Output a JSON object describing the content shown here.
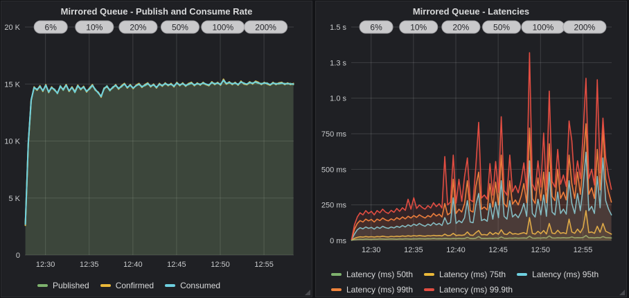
{
  "theme": {
    "page_bg": "#131417",
    "panel_bg": "#1f2024",
    "panel_border": "#2c2d31",
    "title_text": "#d8d9da",
    "axis_text": "#c9cbcd",
    "grid_color": "rgba(255,255,255,0.14)",
    "pill_bg": "#c9c9cb",
    "pill_border": "#a3a3a7",
    "pill_text": "#26272b",
    "palette": {
      "green": "#7EB26D",
      "yellow": "#EAB839",
      "cyan": "#6ED0E0",
      "orange": "#EF843C",
      "red": "#E24D42"
    }
  },
  "chart_data": [
    {
      "type": "line",
      "title": "Mirrored Queue - Publish and Consume Rate",
      "xlabel": "",
      "ylabel": "",
      "grid": true,
      "legend_position": "bottom",
      "x_range_minutes": [
        27.65,
        58.4
      ],
      "sample_start_min": 27.7,
      "sample_step_min": 0.33333,
      "ylim": [
        0,
        20000
      ],
      "y_ticks": [
        {
          "v": 0,
          "label": "0"
        },
        {
          "v": 5000,
          "label": "5 K"
        },
        {
          "v": 10000,
          "label": "10 K"
        },
        {
          "v": 15000,
          "label": "15 K"
        },
        {
          "v": 20000,
          "label": "20 K"
        }
      ],
      "x_ticks": [
        {
          "t": 30,
          "label": "12:30"
        },
        {
          "t": 35,
          "label": "12:35"
        },
        {
          "t": 40,
          "label": "12:40"
        },
        {
          "t": 45,
          "label": "12:45"
        },
        {
          "t": 50,
          "label": "12:50"
        },
        {
          "t": 55,
          "label": "12:55"
        }
      ],
      "annotations": [
        {
          "t": 30.6,
          "label": "6%"
        },
        {
          "t": 35.6,
          "label": "10%"
        },
        {
          "t": 40.6,
          "label": "20%"
        },
        {
          "t": 45.4,
          "label": "50%"
        },
        {
          "t": 50.3,
          "label": "100%"
        },
        {
          "t": 55.2,
          "label": "200%"
        }
      ],
      "series": [
        {
          "name": "Published",
          "color": "#7EB26D",
          "fill_opacity": 0.09,
          "values": [
            2750,
            9750,
            13650,
            14650,
            14550,
            14750,
            14450,
            14850,
            14350,
            14650,
            14550,
            14150,
            14850,
            14450,
            14950,
            14350,
            14750,
            14250,
            14800,
            14600,
            14700,
            14400,
            14550,
            14850,
            14550,
            14200,
            13950,
            14550,
            14850,
            14400,
            14750,
            14850,
            14650,
            14750,
            15050,
            14650,
            14950,
            14600,
            14900,
            14950,
            14800,
            14850,
            15000,
            14850,
            14900,
            14750,
            14950,
            14900,
            15000,
            14950,
            14950,
            14850,
            15050,
            14950,
            15000,
            14900,
            14950,
            15050,
            14950,
            15000,
            15000,
            15050,
            14950,
            14950,
            15100,
            15050,
            15050,
            15000,
            15300,
            15000,
            15100,
            15050,
            15050,
            15000,
            15150,
            15100,
            14950,
            15100,
            15100,
            15150,
            15050,
            15050,
            15050,
            15100,
            14900,
            15050,
            15050,
            15000,
            15050,
            15050,
            15000,
            15050,
            14950
          ]
        },
        {
          "name": "Confirmed",
          "color": "#EAB839",
          "fill_opacity": 0.09,
          "values": [
            2600,
            9700,
            13550,
            14750,
            14450,
            14850,
            14350,
            14950,
            14250,
            14750,
            14450,
            14250,
            14750,
            14550,
            14950,
            14350,
            14750,
            14350,
            14900,
            14500,
            14800,
            14300,
            14650,
            14950,
            14450,
            14300,
            13850,
            14650,
            14750,
            14500,
            14650,
            14950,
            14550,
            14850,
            15050,
            14650,
            14950,
            14600,
            14900,
            15050,
            14700,
            14950,
            15100,
            14750,
            15000,
            14650,
            15050,
            14800,
            15100,
            14850,
            15050,
            14750,
            15150,
            14850,
            15100,
            14800,
            15050,
            15150,
            14850,
            15100,
            14900,
            15150,
            14950,
            14850,
            15200,
            14950,
            15150,
            14900,
            15420,
            15000,
            15200,
            14950,
            15150,
            14900,
            15250,
            15000,
            14950,
            15200,
            15000,
            15250,
            15150,
            14950,
            15150,
            15000,
            14900,
            15150,
            14950,
            15100,
            15150,
            14950,
            15100,
            14950,
            15050
          ]
        },
        {
          "name": "Consumed",
          "color": "#6ED0E0",
          "fill_opacity": 0.09,
          "values": [
            2700,
            9800,
            13600,
            14700,
            14500,
            14800,
            14400,
            14900,
            14300,
            14700,
            14500,
            14200,
            14800,
            14500,
            14900,
            14400,
            14700,
            14300,
            14850,
            14550,
            14750,
            14350,
            14600,
            14900,
            14500,
            14250,
            13900,
            14600,
            14800,
            14450,
            14700,
            14900,
            14600,
            14800,
            15000,
            14700,
            14900,
            14650,
            14850,
            15000,
            14750,
            14900,
            15050,
            14800,
            14950,
            14700,
            15000,
            14850,
            15050,
            14900,
            15000,
            14800,
            15100,
            14900,
            15050,
            14850,
            15000,
            15100,
            14900,
            15050,
            14950,
            15100,
            15000,
            14900,
            15150,
            15000,
            15100,
            14950,
            15350,
            15050,
            15150,
            15000,
            15100,
            14950,
            15200,
            15050,
            15000,
            15150,
            15050,
            15200,
            15100,
            15000,
            15100,
            15050,
            14950,
            15100,
            15000,
            15050,
            15100,
            15000,
            15050,
            15000,
            15000
          ]
        }
      ]
    },
    {
      "type": "line",
      "title": "Mirrored Queue - Latencies",
      "xlabel": "",
      "ylabel": "",
      "grid": true,
      "legend_position": "bottom",
      "x_range_minutes": [
        27.65,
        58.4
      ],
      "sample_start_min": 27.7,
      "sample_step_min": 0.33333,
      "ylim": [
        0,
        1500
      ],
      "y_ticks": [
        {
          "v": 0,
          "label": "0 ms"
        },
        {
          "v": 250,
          "label": "250 ms"
        },
        {
          "v": 500,
          "label": "500 ms"
        },
        {
          "v": 750,
          "label": "750 ms"
        },
        {
          "v": 1000,
          "label": "1.0 s"
        },
        {
          "v": 1250,
          "label": "1.3 s"
        },
        {
          "v": 1500,
          "label": "1.5 s"
        }
      ],
      "x_ticks": [
        {
          "t": 30,
          "label": "12:30"
        },
        {
          "t": 35,
          "label": "12:35"
        },
        {
          "t": 40,
          "label": "12:40"
        },
        {
          "t": 45,
          "label": "12:45"
        },
        {
          "t": 50,
          "label": "12:50"
        },
        {
          "t": 55,
          "label": "12:55"
        }
      ],
      "annotations": [
        {
          "t": 30.6,
          "label": "6%"
        },
        {
          "t": 35.6,
          "label": "10%"
        },
        {
          "t": 40.6,
          "label": "20%"
        },
        {
          "t": 45.4,
          "label": "50%"
        },
        {
          "t": 50.3,
          "label": "100%"
        },
        {
          "t": 55.2,
          "label": "200%"
        }
      ],
      "series": [
        {
          "name": "Latency (ms) 50th",
          "color": "#7EB26D",
          "fill_opacity": 0.1,
          "values": [
            2,
            6,
            8,
            9,
            8,
            10,
            9,
            8,
            10,
            9,
            11,
            10,
            9,
            10,
            11,
            10,
            9,
            11,
            10,
            12,
            11,
            10,
            12,
            11,
            13,
            12,
            11,
            13,
            12,
            14,
            12,
            13,
            12,
            14,
            13,
            12,
            14,
            13,
            15,
            13,
            14,
            22,
            14,
            13,
            16,
            28,
            14,
            15,
            14,
            16,
            15,
            17,
            15,
            25,
            16,
            15,
            17,
            16,
            18,
            16,
            17,
            18,
            16,
            30,
            17,
            16,
            18,
            17,
            19,
            17,
            32,
            18,
            17,
            19,
            18,
            20,
            18,
            19,
            25,
            18,
            20,
            19,
            21,
            35,
            19,
            20,
            18,
            21,
            19,
            28,
            20,
            19,
            18
          ]
        },
        {
          "name": "Latency (ms) 75th",
          "color": "#EAB839",
          "fill_opacity": 0.1,
          "values": [
            3,
            15,
            22,
            26,
            24,
            28,
            25,
            27,
            24,
            28,
            26,
            30,
            27,
            25,
            29,
            27,
            30,
            28,
            32,
            29,
            33,
            30,
            34,
            31,
            35,
            32,
            30,
            34,
            32,
            36,
            33,
            35,
            32,
            45,
            34,
            36,
            50,
            35,
            38,
            36,
            40,
            60,
            38,
            36,
            55,
            70,
            40,
            42,
            38,
            58,
            42,
            55,
            44,
            75,
            46,
            42,
            60,
            45,
            48,
            44,
            50,
            55,
            46,
            160,
            50,
            45,
            65,
            48,
            70,
            46,
            120,
            52,
            48,
            72,
            50,
            55,
            48,
            150,
            60,
            50,
            80,
            55,
            90,
            210,
            55,
            60,
            50,
            100,
            58,
            120,
            65,
            55,
            45
          ]
        },
        {
          "name": "Latency (ms) 95th",
          "color": "#6ED0E0",
          "fill_opacity": 0.1,
          "values": [
            5,
            45,
            75,
            90,
            82,
            95,
            85,
            92,
            80,
            95,
            85,
            100,
            90,
            85,
            95,
            88,
            100,
            92,
            105,
            95,
            110,
            100,
            115,
            105,
            120,
            108,
            100,
            115,
            105,
            125,
            110,
            120,
            105,
            160,
            115,
            125,
            300,
            120,
            140,
            125,
            160,
            280,
            130,
            125,
            250,
            330,
            140,
            150,
            135,
            260,
            150,
            270,
            160,
            420,
            170,
            150,
            280,
            165,
            185,
            160,
            200,
            260,
            170,
            560,
            190,
            165,
            290,
            180,
            320,
            170,
            480,
            200,
            180,
            340,
            190,
            220,
            185,
            420,
            260,
            190,
            330,
            210,
            380,
            620,
            210,
            240,
            190,
            450,
            230,
            580,
            280,
            220,
            180
          ]
        },
        {
          "name": "Latency (ms) 99th",
          "color": "#EF843C",
          "fill_opacity": 0.1,
          "values": [
            8,
            80,
            120,
            140,
            130,
            150,
            138,
            148,
            130,
            150,
            140,
            158,
            145,
            138,
            152,
            142,
            160,
            148,
            165,
            152,
            170,
            158,
            175,
            162,
            180,
            168,
            158,
            175,
            165,
            190,
            172,
            185,
            165,
            260,
            180,
            195,
            430,
            190,
            220,
            200,
            260,
            420,
            210,
            200,
            380,
            480,
            220,
            235,
            215,
            400,
            235,
            410,
            250,
            600,
            260,
            235,
            420,
            255,
            285,
            250,
            310,
            400,
            265,
            790,
            295,
            260,
            440,
            280,
            480,
            265,
            680,
            310,
            280,
            500,
            295,
            340,
            285,
            600,
            400,
            295,
            480,
            325,
            560,
            820,
            325,
            370,
            295,
            640,
            355,
            790,
            430,
            340,
            270
          ]
        },
        {
          "name": "Latency (ms) 99.9th",
          "color": "#E24D42",
          "fill_opacity": 0.1,
          "values": [
            10,
            110,
            165,
            195,
            180,
            210,
            190,
            205,
            180,
            210,
            195,
            220,
            200,
            190,
            212,
            198,
            225,
            205,
            230,
            212,
            290,
            220,
            300,
            225,
            250,
            232,
            220,
            245,
            228,
            265,
            238,
            258,
            228,
            590,
            250,
            270,
            600,
            262,
            430,
            275,
            450,
            580,
            285,
            272,
            520,
            830,
            298,
            320,
            290,
            540,
            318,
            555,
            338,
            870,
            352,
            318,
            600,
            342,
            385,
            335,
            420,
            545,
            355,
            1320,
            398,
            350,
            560,
            375,
            755,
            355,
            1050,
            415,
            375,
            640,
            395,
            460,
            380,
            840,
            700,
            395,
            560,
            435,
            755,
            1140,
            435,
            500,
            390,
            1130,
            475,
            860,
            580,
            455,
            360
          ]
        }
      ]
    }
  ]
}
